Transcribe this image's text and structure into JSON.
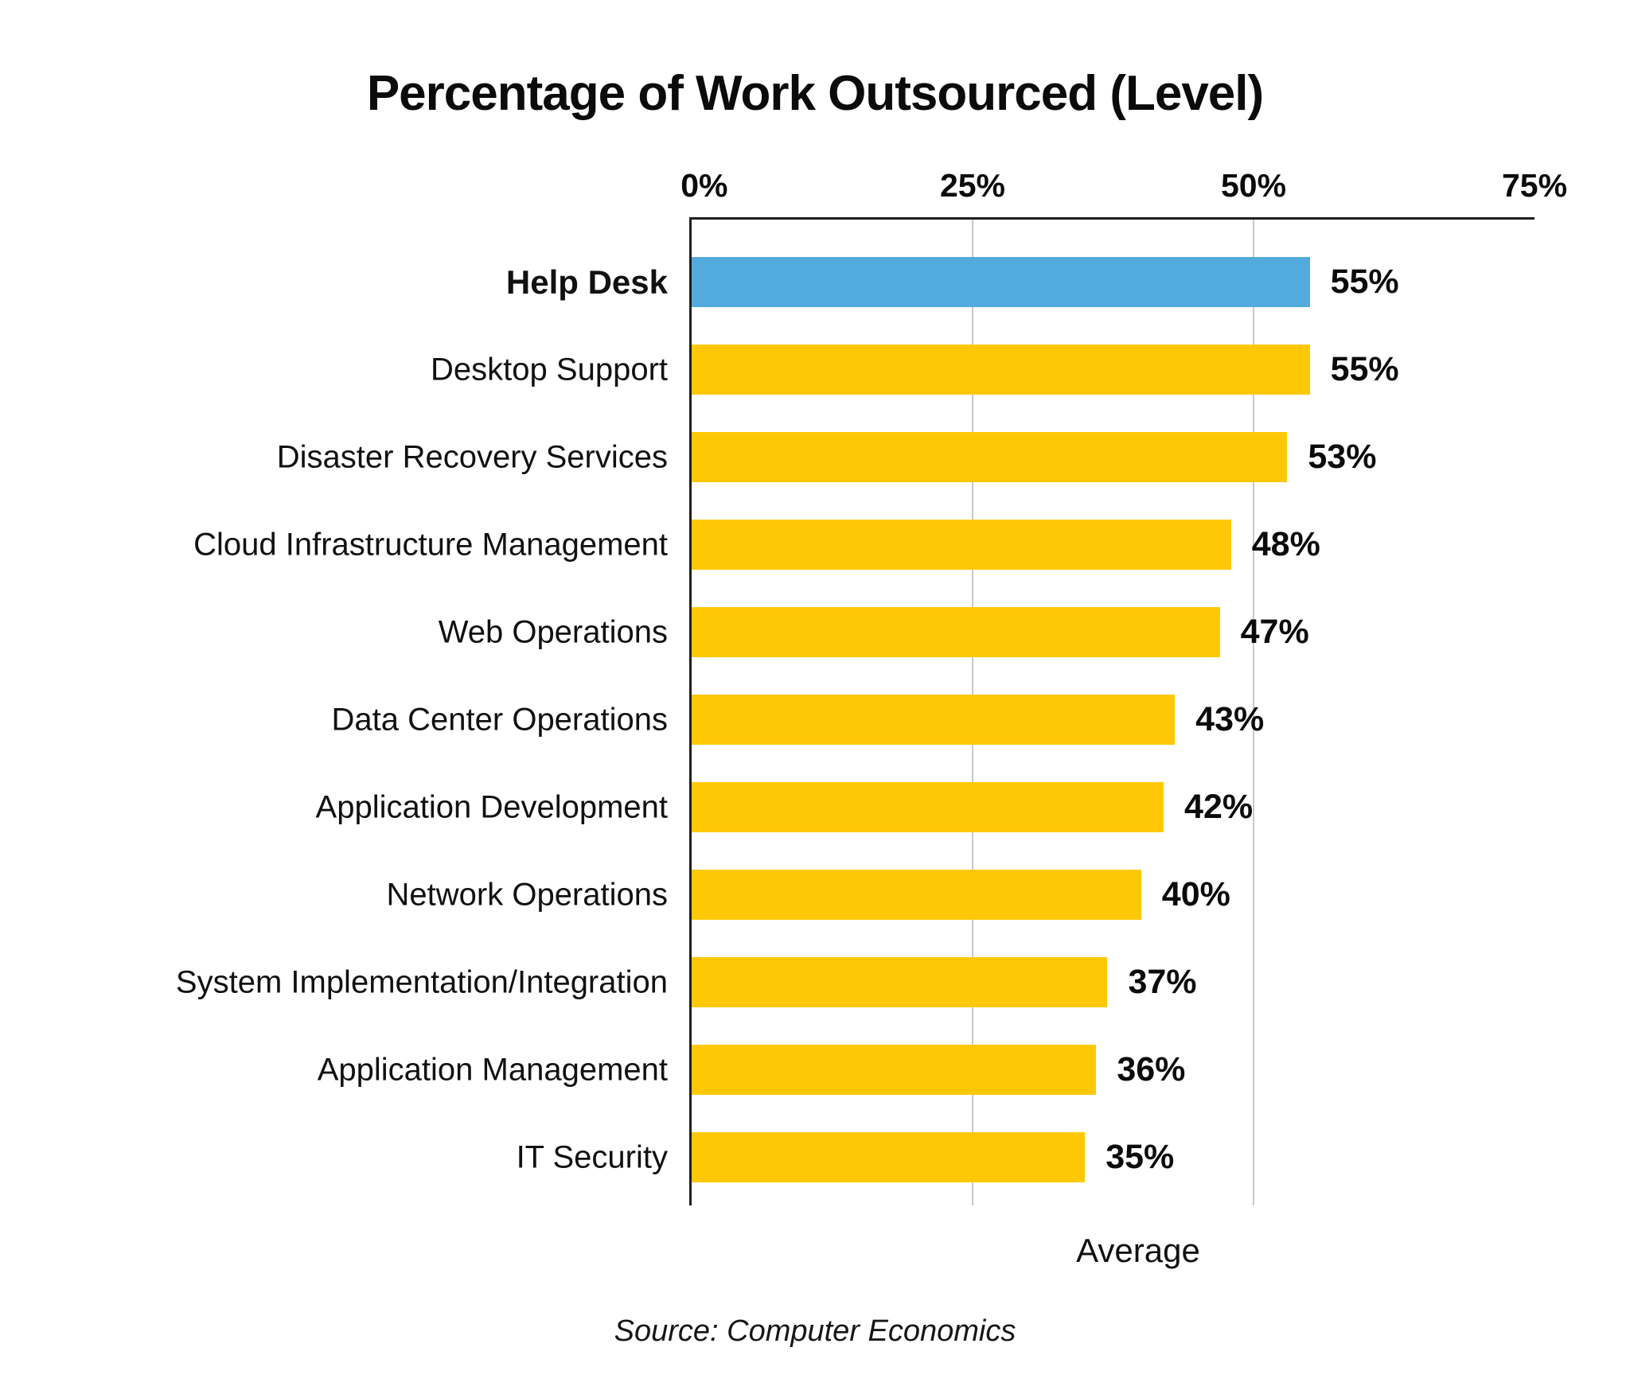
{
  "title": "Percentage of Work Outsourced (Level)",
  "footer": {
    "source": "Source: Computer Economics"
  },
  "chart_data": {
    "type": "bar",
    "orientation": "horizontal",
    "title": "Percentage of Work Outsourced (Level)",
    "xlabel": "Average",
    "xlim": [
      0,
      75
    ],
    "x_ticks": [
      "0%",
      "25%",
      "50%",
      "75%"
    ],
    "grid": "vertical gridlines at 25% and 50%",
    "legend": "none",
    "categories": [
      "Help Desk",
      "Desktop Support",
      "Disaster Recovery Services",
      "Cloud Infrastructure Management",
      "Web Operations",
      "Data Center Operations",
      "Application Development",
      "Network Operations",
      "System Implementation/Integration",
      "Application Management",
      "IT Security"
    ],
    "values": [
      55,
      55,
      53,
      48,
      47,
      43,
      42,
      40,
      37,
      36,
      35
    ],
    "value_labels": [
      "55%",
      "55%",
      "53%",
      "48%",
      "47%",
      "43%",
      "42%",
      "40%",
      "37%",
      "36%",
      "35%"
    ],
    "highlight_index": 0,
    "colors": {
      "bar": "#FFC807",
      "highlight": "#53AADC",
      "axis": "#1f1f1f",
      "gridline": "#c9c9c9",
      "text": "#0b0b0b"
    },
    "source": "Source: Computer Economics"
  }
}
